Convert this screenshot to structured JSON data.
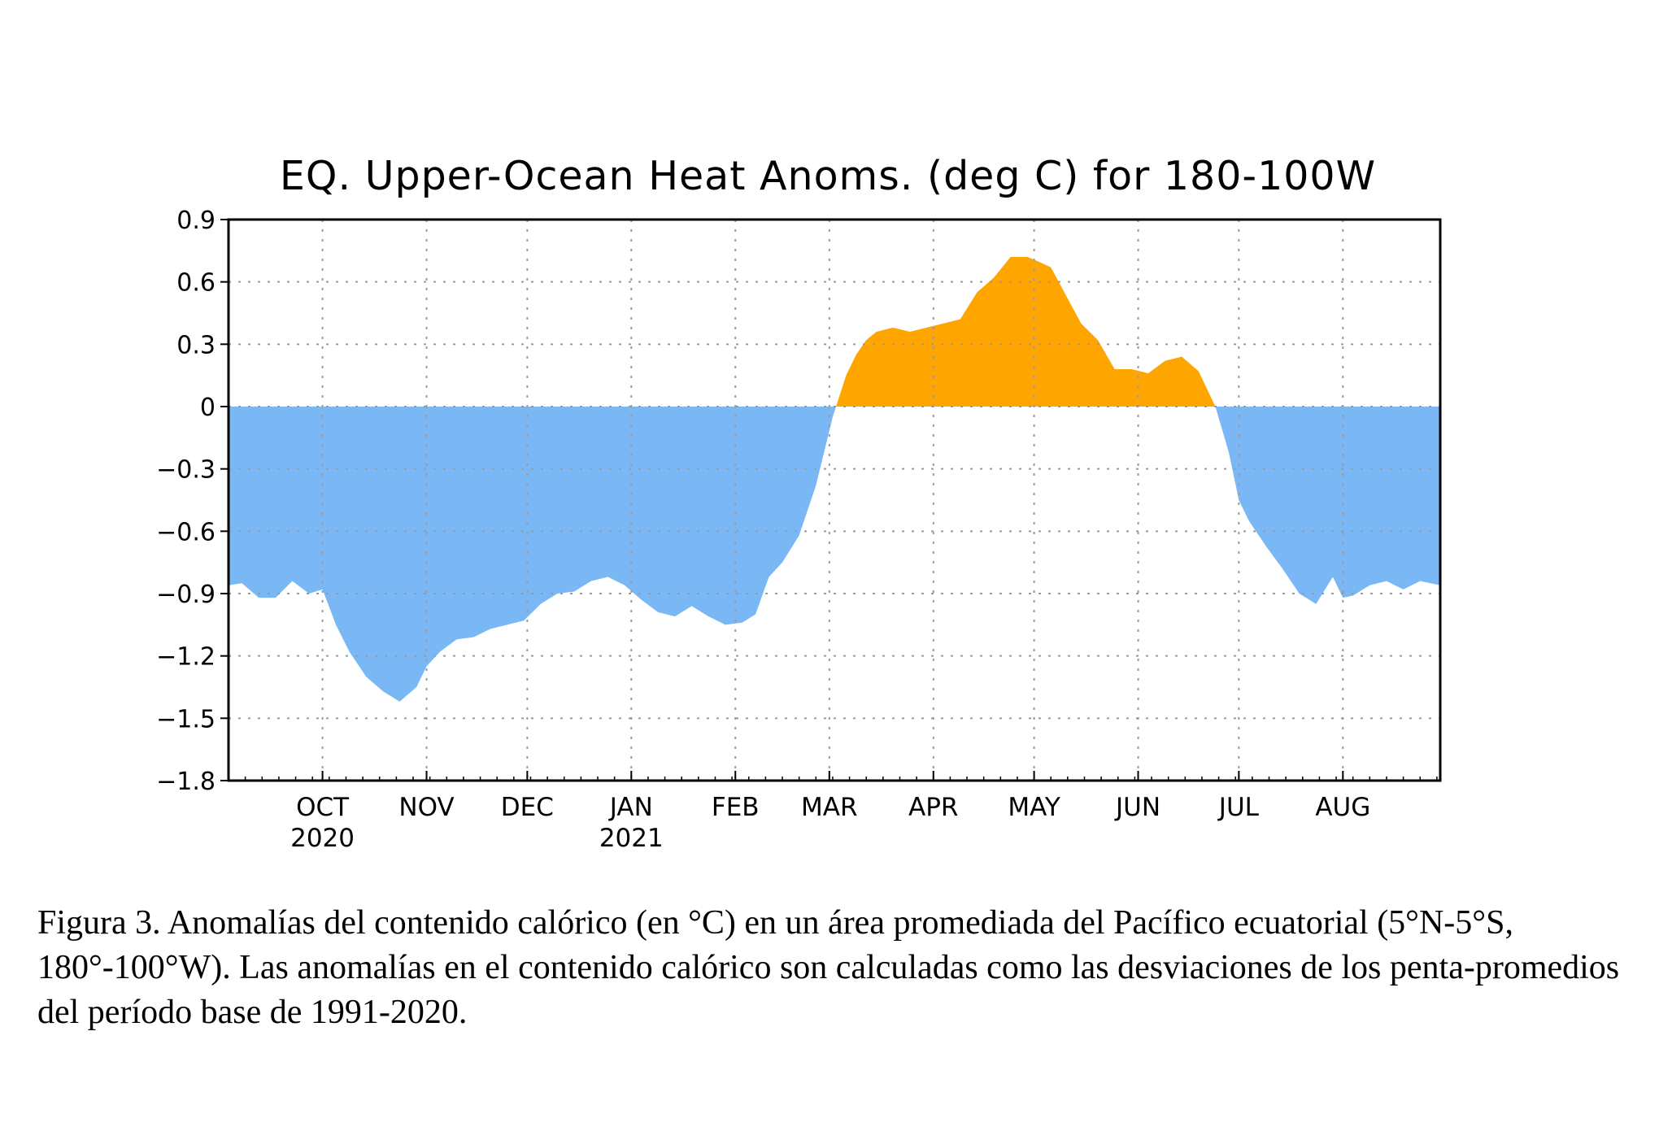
{
  "chart_data": {
    "type": "area",
    "title": "EQ. Upper-Ocean Heat Anoms. (deg C) for 180-100W",
    "xlabel": "",
    "ylabel": "",
    "ylim": [
      -1.8,
      0.9
    ],
    "yticks": [
      0.9,
      0.6,
      0.3,
      0,
      -0.3,
      -0.6,
      -0.9,
      -1.2,
      -1.5,
      -1.8
    ],
    "ytick_labels": [
      "0.9",
      "0.6",
      "0.3",
      "0",
      "−0.3",
      "−0.6",
      "−0.9",
      "−1.2",
      "−1.5",
      "−1.8"
    ],
    "xlim": [
      "2020-09-03",
      "2021-08-30"
    ],
    "month_ticks": [
      {
        "date": "2020-10-01",
        "label": "OCT",
        "year": "2020"
      },
      {
        "date": "2020-11-01",
        "label": "NOV",
        "year": ""
      },
      {
        "date": "2020-12-01",
        "label": "DEC",
        "year": ""
      },
      {
        "date": "2021-01-01",
        "label": "JAN",
        "year": "2021"
      },
      {
        "date": "2021-02-01",
        "label": "FEB",
        "year": ""
      },
      {
        "date": "2021-03-01",
        "label": "MAR",
        "year": ""
      },
      {
        "date": "2021-04-01",
        "label": "APR",
        "year": ""
      },
      {
        "date": "2021-05-01",
        "label": "MAY",
        "year": ""
      },
      {
        "date": "2021-06-01",
        "label": "JUN",
        "year": ""
      },
      {
        "date": "2021-07-01",
        "label": "JUL",
        "year": ""
      },
      {
        "date": "2021-08-01",
        "label": "AUG",
        "year": ""
      }
    ],
    "grid": true,
    "positive_color": "#FFA500",
    "negative_color": "#7AB8F5",
    "series": [
      {
        "x": [
          "2020-09-03",
          "2020-09-07",
          "2020-09-12",
          "2020-09-17",
          "2020-09-22",
          "2020-09-27",
          "2020-10-01",
          "2020-10-05",
          "2020-10-09",
          "2020-10-14",
          "2020-10-19",
          "2020-10-24",
          "2020-10-29",
          "2020-11-01",
          "2020-11-05",
          "2020-11-10",
          "2020-11-15",
          "2020-11-20",
          "2020-11-25",
          "2020-11-30",
          "2020-12-05",
          "2020-12-10",
          "2020-12-15",
          "2020-12-20",
          "2020-12-25",
          "2020-12-30",
          "2021-01-04",
          "2021-01-09",
          "2021-01-14",
          "2021-01-19",
          "2021-01-24",
          "2021-01-29",
          "2021-02-03",
          "2021-02-07",
          "2021-02-11",
          "2021-02-15",
          "2021-02-20",
          "2021-02-25",
          "2021-03-02",
          "2021-03-06",
          "2021-03-09",
          "2021-03-12",
          "2021-03-15",
          "2021-03-20",
          "2021-03-25",
          "2021-03-30",
          "2021-04-04",
          "2021-04-09",
          "2021-04-14",
          "2021-04-19",
          "2021-04-24",
          "2021-04-29",
          "2021-05-02",
          "2021-05-06",
          "2021-05-10",
          "2021-05-15",
          "2021-05-20",
          "2021-05-25",
          "2021-05-30",
          "2021-06-04",
          "2021-06-09",
          "2021-06-14",
          "2021-06-19",
          "2021-06-24",
          "2021-06-28",
          "2021-07-01",
          "2021-07-04",
          "2021-07-09",
          "2021-07-14",
          "2021-07-19",
          "2021-07-24",
          "2021-07-29",
          "2021-08-01",
          "2021-08-04",
          "2021-08-09",
          "2021-08-14",
          "2021-08-19",
          "2021-08-24",
          "2021-08-30"
        ],
        "values": [
          -0.86,
          -0.85,
          -0.92,
          -0.92,
          -0.84,
          -0.9,
          -0.88,
          -1.05,
          -1.18,
          -1.3,
          -1.37,
          -1.42,
          -1.35,
          -1.25,
          -1.18,
          -1.12,
          -1.11,
          -1.07,
          -1.05,
          -1.03,
          -0.95,
          -0.9,
          -0.89,
          -0.84,
          -0.82,
          -0.86,
          -0.93,
          -0.99,
          -1.01,
          -0.96,
          -1.01,
          -1.05,
          -1.04,
          -1.0,
          -0.82,
          -0.75,
          -0.62,
          -0.38,
          -0.05,
          0.15,
          0.25,
          0.32,
          0.36,
          0.38,
          0.36,
          0.38,
          0.4,
          0.42,
          0.55,
          0.62,
          0.72,
          0.72,
          0.7,
          0.67,
          0.55,
          0.4,
          0.32,
          0.18,
          0.18,
          0.16,
          0.22,
          0.24,
          0.17,
          0.0,
          -0.22,
          -0.45,
          -0.55,
          -0.67,
          -0.78,
          -0.9,
          -0.95,
          -0.82,
          -0.92,
          -0.91,
          -0.86,
          -0.84,
          -0.88,
          -0.84,
          -0.86
        ]
      }
    ]
  },
  "caption": "Figura 3. Anomalías del contenido calórico (en °C) en un área promediada del Pacífico ecuatorial (5°N-5°S, 180°-100°W). Las anomalías en el contenido calórico son calculadas como las desviaciones de los penta-promedios del período base de 1991-2020."
}
